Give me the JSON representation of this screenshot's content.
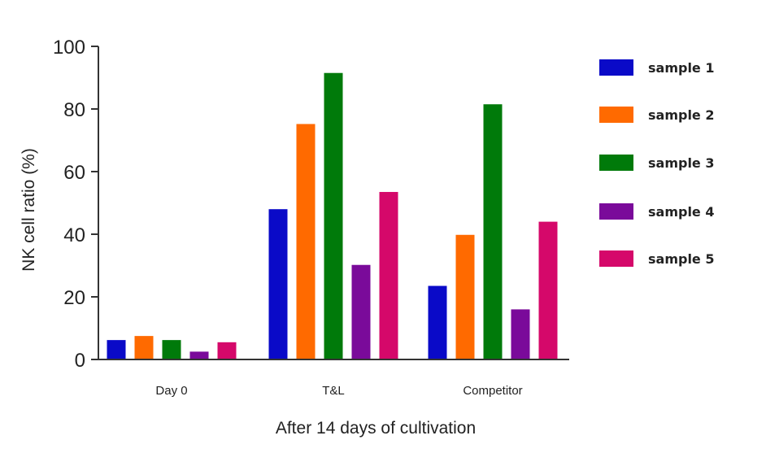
{
  "chart_data": {
    "type": "bar",
    "title": "",
    "xlabel": "After 14 days of cultivation",
    "ylabel": "NK cell ratio (%)",
    "ylim": [
      0,
      100
    ],
    "yticks": [
      "0",
      "20",
      "40",
      "60",
      "80",
      "100"
    ],
    "categories": [
      "Day 0",
      "T&L",
      "Competitor"
    ],
    "legend_position": "right",
    "grid": false,
    "series": [
      {
        "name": "sample 1",
        "color": "#0a0ac8",
        "values": [
          6.2,
          48.0,
          23.5
        ]
      },
      {
        "name": "sample 2",
        "color": "#ff6a00",
        "values": [
          7.5,
          75.2,
          39.8
        ]
      },
      {
        "name": "sample 3",
        "color": "#007a0a",
        "values": [
          6.2,
          91.5,
          81.5
        ]
      },
      {
        "name": "sample 4",
        "color": "#7a0a9a",
        "values": [
          2.5,
          30.2,
          16.0
        ]
      },
      {
        "name": "sample 5",
        "color": "#d5086a",
        "values": [
          5.5,
          53.5,
          44.0
        ]
      }
    ]
  }
}
